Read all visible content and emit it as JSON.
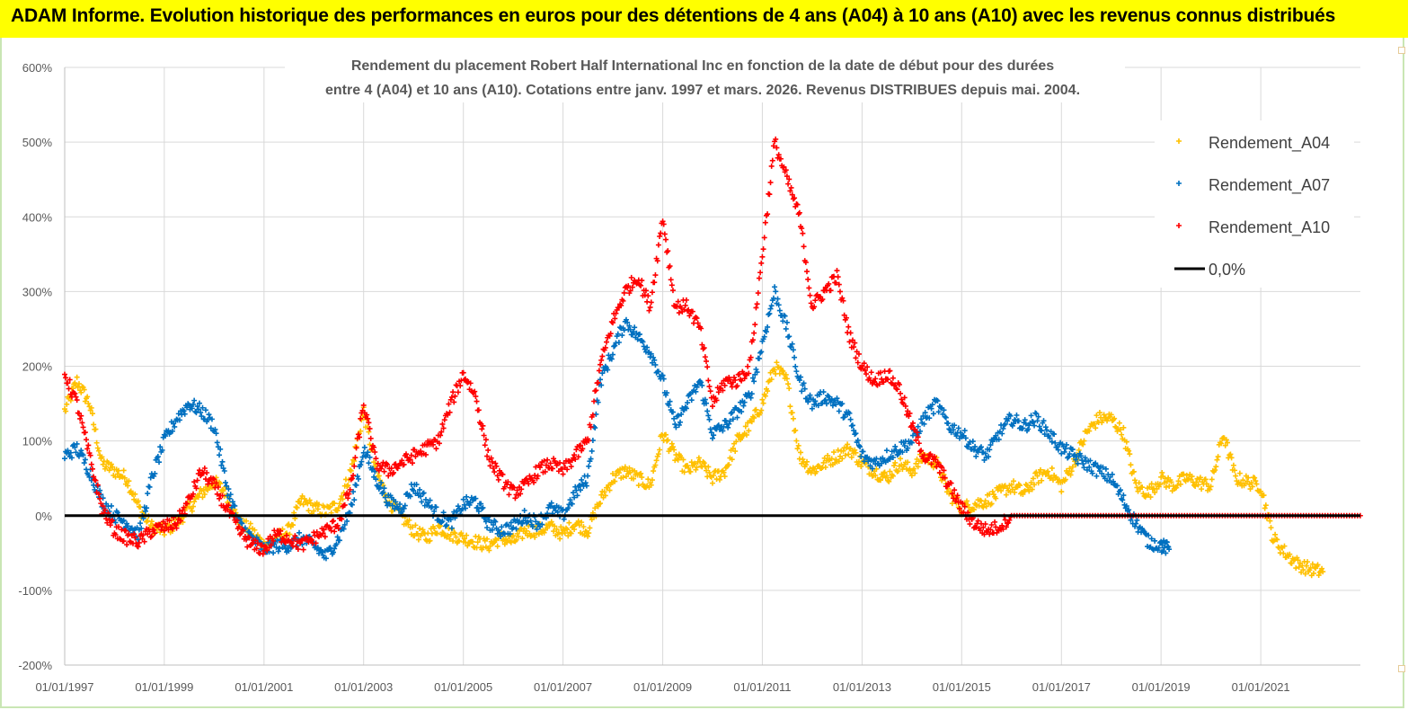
{
  "header": {
    "title": "ADAM Informe. Evolution historique des performances en euros pour des détentions de 4 ans (A04) à 10 ans (A10) avec les revenus connus distribués"
  },
  "chart_data": {
    "type": "scatter",
    "title_line1": "Rendement du placement Robert Half International Inc en fonction de la date de début pour des durées",
    "title_line2": "entre 4 (A04) et 10 ans (A10).  Cotations entre janv. 1997 et mars. 2026. Revenus DISTRIBUES depuis mai. 2004.",
    "xlabel": "",
    "ylabel": "",
    "ylim": [
      -200,
      600
    ],
    "yticks": [
      "600%",
      "500%",
      "400%",
      "300%",
      "200%",
      "100%",
      "0%",
      "-100%",
      "-200%"
    ],
    "xticks": [
      "01/01/1997",
      "01/01/1999",
      "01/01/2001",
      "01/01/2003",
      "01/01/2005",
      "01/01/2007",
      "01/01/2009",
      "01/01/2011",
      "01/01/2013",
      "01/01/2015",
      "01/01/2017",
      "01/01/2019",
      "01/01/2021"
    ],
    "grid": true,
    "legend_position": "top-right",
    "legend": [
      "Rendement_A04",
      "Rendement_A07",
      "Rendement_A10",
      "0,0%"
    ],
    "series": [
      {
        "name": "Rendement_A04",
        "color": "#ffc000",
        "marker": "plus",
        "points": [
          [
            "1997-01-01",
            140
          ],
          [
            "1997-04-01",
            180
          ],
          [
            "1997-07-01",
            150
          ],
          [
            "1997-10-01",
            70
          ],
          [
            "1998-01-01",
            60
          ],
          [
            "1998-04-01",
            50
          ],
          [
            "1998-07-01",
            10
          ],
          [
            "1998-10-01",
            -15
          ],
          [
            "1999-01-01",
            -20
          ],
          [
            "1999-04-01",
            -10
          ],
          [
            "1999-07-01",
            10
          ],
          [
            "1999-10-01",
            30
          ],
          [
            "2000-01-01",
            45
          ],
          [
            "2000-04-01",
            30
          ],
          [
            "2000-07-01",
            -10
          ],
          [
            "2000-10-01",
            -20
          ],
          [
            "2001-01-01",
            -40
          ],
          [
            "2001-04-01",
            -30
          ],
          [
            "2001-07-01",
            -20
          ],
          [
            "2001-10-01",
            20
          ],
          [
            "2002-01-01",
            10
          ],
          [
            "2002-04-01",
            5
          ],
          [
            "2002-07-01",
            15
          ],
          [
            "2002-10-01",
            60
          ],
          [
            "2003-01-01",
            140
          ],
          [
            "2003-04-01",
            60
          ],
          [
            "2003-07-01",
            20
          ],
          [
            "2003-10-01",
            0
          ],
          [
            "2004-01-01",
            -20
          ],
          [
            "2004-04-01",
            -30
          ],
          [
            "2004-07-01",
            -15
          ],
          [
            "2004-10-01",
            -25
          ],
          [
            "2005-01-01",
            -30
          ],
          [
            "2005-04-01",
            -35
          ],
          [
            "2005-07-01",
            -40
          ],
          [
            "2005-10-01",
            -30
          ],
          [
            "2006-01-01",
            -35
          ],
          [
            "2006-04-01",
            -20
          ],
          [
            "2006-07-01",
            -20
          ],
          [
            "2006-10-01",
            -15
          ],
          [
            "2007-01-01",
            -25
          ],
          [
            "2007-04-01",
            -10
          ],
          [
            "2007-07-01",
            -20
          ],
          [
            "2007-10-01",
            20
          ],
          [
            "2008-01-01",
            50
          ],
          [
            "2008-04-01",
            60
          ],
          [
            "2008-07-01",
            50
          ],
          [
            "2008-10-01",
            40
          ],
          [
            "2009-01-01",
            110
          ],
          [
            "2009-04-01",
            80
          ],
          [
            "2009-07-01",
            60
          ],
          [
            "2009-10-01",
            70
          ],
          [
            "2010-01-01",
            50
          ],
          [
            "2010-04-01",
            60
          ],
          [
            "2010-07-01",
            100
          ],
          [
            "2010-10-01",
            120
          ],
          [
            "2011-01-01",
            150
          ],
          [
            "2011-04-01",
            200
          ],
          [
            "2011-07-01",
            180
          ],
          [
            "2011-10-01",
            80
          ],
          [
            "2012-01-01",
            60
          ],
          [
            "2012-04-01",
            70
          ],
          [
            "2012-07-01",
            80
          ],
          [
            "2012-10-01",
            90
          ],
          [
            "2013-01-01",
            70
          ],
          [
            "2013-04-01",
            60
          ],
          [
            "2013-07-01",
            50
          ],
          [
            "2013-10-01",
            70
          ],
          [
            "2014-01-01",
            60
          ],
          [
            "2014-04-01",
            80
          ],
          [
            "2014-07-01",
            70
          ],
          [
            "2014-10-01",
            30
          ],
          [
            "2015-01-01",
            10
          ],
          [
            "2015-04-01",
            15
          ],
          [
            "2015-07-01",
            20
          ],
          [
            "2015-10-01",
            30
          ],
          [
            "2016-01-01",
            40
          ],
          [
            "2016-04-01",
            30
          ],
          [
            "2016-07-01",
            50
          ],
          [
            "2016-10-01",
            60
          ],
          [
            "2017-01-01",
            40
          ],
          [
            "2017-04-01",
            70
          ],
          [
            "2017-07-01",
            110
          ],
          [
            "2017-10-01",
            130
          ],
          [
            "2018-01-01",
            130
          ],
          [
            "2018-04-01",
            110
          ],
          [
            "2018-07-01",
            40
          ],
          [
            "2018-10-01",
            30
          ],
          [
            "2019-01-01",
            50
          ],
          [
            "2019-04-01",
            40
          ],
          [
            "2019-07-01",
            50
          ],
          [
            "2019-10-01",
            45
          ],
          [
            "2020-01-01",
            40
          ],
          [
            "2020-04-01",
            110
          ],
          [
            "2020-07-01",
            50
          ],
          [
            "2020-10-01",
            45
          ],
          [
            "2021-01-01",
            40
          ],
          [
            "2021-04-01",
            -30
          ],
          [
            "2021-07-01",
            -50
          ],
          [
            "2021-10-01",
            -65
          ],
          [
            "2022-01-01",
            -72
          ],
          [
            "2022-04-01",
            -75
          ]
        ]
      },
      {
        "name": "Rendement_A07",
        "color": "#0070c0",
        "marker": "plus",
        "points": [
          [
            "1997-01-01",
            80
          ],
          [
            "1997-04-01",
            90
          ],
          [
            "1997-07-01",
            60
          ],
          [
            "1997-10-01",
            20
          ],
          [
            "1998-01-01",
            0
          ],
          [
            "1998-04-01",
            -10
          ],
          [
            "1998-07-01",
            -25
          ],
          [
            "1998-10-01",
            50
          ],
          [
            "1999-01-01",
            100
          ],
          [
            "1999-04-01",
            130
          ],
          [
            "1999-07-01",
            150
          ],
          [
            "1999-10-01",
            140
          ],
          [
            "2000-01-01",
            120
          ],
          [
            "2000-04-01",
            40
          ],
          [
            "2000-07-01",
            -10
          ],
          [
            "2000-10-01",
            -30
          ],
          [
            "2001-01-01",
            -45
          ],
          [
            "2001-04-01",
            -40
          ],
          [
            "2001-07-01",
            -40
          ],
          [
            "2001-10-01",
            -30
          ],
          [
            "2002-01-01",
            -40
          ],
          [
            "2002-04-01",
            -55
          ],
          [
            "2002-07-01",
            -30
          ],
          [
            "2002-10-01",
            10
          ],
          [
            "2003-01-01",
            90
          ],
          [
            "2003-04-01",
            50
          ],
          [
            "2003-07-01",
            20
          ],
          [
            "2003-10-01",
            10
          ],
          [
            "2004-01-01",
            40
          ],
          [
            "2004-04-01",
            20
          ],
          [
            "2004-07-01",
            0
          ],
          [
            "2004-10-01",
            -10
          ],
          [
            "2005-01-01",
            15
          ],
          [
            "2005-04-01",
            20
          ],
          [
            "2005-07-01",
            -10
          ],
          [
            "2005-10-01",
            -20
          ],
          [
            "2006-01-01",
            -15
          ],
          [
            "2006-04-01",
            0
          ],
          [
            "2006-07-01",
            -10
          ],
          [
            "2006-10-01",
            10
          ],
          [
            "2007-01-01",
            0
          ],
          [
            "2007-04-01",
            30
          ],
          [
            "2007-07-01",
            50
          ],
          [
            "2007-10-01",
            180
          ],
          [
            "2008-01-01",
            220
          ],
          [
            "2008-04-01",
            260
          ],
          [
            "2008-07-01",
            240
          ],
          [
            "2008-10-01",
            220
          ],
          [
            "2009-01-01",
            180
          ],
          [
            "2009-04-01",
            120
          ],
          [
            "2009-07-01",
            150
          ],
          [
            "2009-10-01",
            180
          ],
          [
            "2010-01-01",
            110
          ],
          [
            "2010-04-01",
            120
          ],
          [
            "2010-07-01",
            140
          ],
          [
            "2010-10-01",
            160
          ],
          [
            "2011-01-01",
            230
          ],
          [
            "2011-04-01",
            300
          ],
          [
            "2011-07-01",
            250
          ],
          [
            "2011-10-01",
            180
          ],
          [
            "2012-01-01",
            150
          ],
          [
            "2012-04-01",
            160
          ],
          [
            "2012-07-01",
            150
          ],
          [
            "2012-10-01",
            130
          ],
          [
            "2013-01-01",
            80
          ],
          [
            "2013-04-01",
            70
          ],
          [
            "2013-07-01",
            80
          ],
          [
            "2013-10-01",
            90
          ],
          [
            "2014-01-01",
            100
          ],
          [
            "2014-04-01",
            130
          ],
          [
            "2014-07-01",
            150
          ],
          [
            "2014-10-01",
            120
          ],
          [
            "2015-01-01",
            110
          ],
          [
            "2015-04-01",
            90
          ],
          [
            "2015-07-01",
            80
          ],
          [
            "2015-10-01",
            110
          ],
          [
            "2016-01-01",
            130
          ],
          [
            "2016-04-01",
            120
          ],
          [
            "2016-07-01",
            130
          ],
          [
            "2016-10-01",
            110
          ],
          [
            "2017-01-01",
            90
          ],
          [
            "2017-04-01",
            80
          ],
          [
            "2017-07-01",
            70
          ],
          [
            "2017-10-01",
            60
          ],
          [
            "2018-01-01",
            50
          ],
          [
            "2018-04-01",
            20
          ],
          [
            "2018-07-01",
            -10
          ],
          [
            "2018-10-01",
            -35
          ],
          [
            "2019-01-01",
            -40
          ],
          [
            "2019-03-01",
            -45
          ]
        ]
      },
      {
        "name": "Rendement_A10",
        "color": "#ff0000",
        "marker": "plus",
        "points": [
          [
            "1997-01-01",
            190
          ],
          [
            "1997-04-01",
            150
          ],
          [
            "1997-07-01",
            80
          ],
          [
            "1997-10-01",
            10
          ],
          [
            "1998-01-01",
            -20
          ],
          [
            "1998-04-01",
            -30
          ],
          [
            "1998-07-01",
            -35
          ],
          [
            "1998-10-01",
            -20
          ],
          [
            "1999-01-01",
            -15
          ],
          [
            "1999-04-01",
            -10
          ],
          [
            "1999-07-01",
            20
          ],
          [
            "1999-10-01",
            60
          ],
          [
            "2000-01-01",
            40
          ],
          [
            "2000-04-01",
            10
          ],
          [
            "2000-07-01",
            -20
          ],
          [
            "2000-10-01",
            -40
          ],
          [
            "2001-01-01",
            -45
          ],
          [
            "2001-04-01",
            -25
          ],
          [
            "2001-07-01",
            -30
          ],
          [
            "2001-10-01",
            -40
          ],
          [
            "2002-01-01",
            -30
          ],
          [
            "2002-04-01",
            -20
          ],
          [
            "2002-07-01",
            -10
          ],
          [
            "2002-10-01",
            40
          ],
          [
            "2003-01-01",
            150
          ],
          [
            "2003-04-01",
            70
          ],
          [
            "2003-07-01",
            60
          ],
          [
            "2003-10-01",
            70
          ],
          [
            "2004-01-01",
            80
          ],
          [
            "2004-04-01",
            90
          ],
          [
            "2004-07-01",
            100
          ],
          [
            "2004-10-01",
            150
          ],
          [
            "2005-01-01",
            190
          ],
          [
            "2005-04-01",
            160
          ],
          [
            "2005-07-01",
            80
          ],
          [
            "2005-10-01",
            50
          ],
          [
            "2006-01-01",
            30
          ],
          [
            "2006-04-01",
            40
          ],
          [
            "2006-07-01",
            60
          ],
          [
            "2006-10-01",
            70
          ],
          [
            "2007-01-01",
            60
          ],
          [
            "2007-04-01",
            80
          ],
          [
            "2007-07-01",
            100
          ],
          [
            "2007-10-01",
            200
          ],
          [
            "2008-01-01",
            260
          ],
          [
            "2008-04-01",
            300
          ],
          [
            "2008-07-01",
            320
          ],
          [
            "2008-10-01",
            280
          ],
          [
            "2009-01-01",
            400
          ],
          [
            "2009-04-01",
            280
          ],
          [
            "2009-07-01",
            280
          ],
          [
            "2009-10-01",
            250
          ],
          [
            "2010-01-01",
            150
          ],
          [
            "2010-04-01",
            180
          ],
          [
            "2010-07-01",
            180
          ],
          [
            "2010-10-01",
            200
          ],
          [
            "2011-01-01",
            350
          ],
          [
            "2011-04-01",
            500
          ],
          [
            "2011-07-01",
            450
          ],
          [
            "2011-10-01",
            400
          ],
          [
            "2012-01-01",
            280
          ],
          [
            "2012-04-01",
            300
          ],
          [
            "2012-07-01",
            320
          ],
          [
            "2012-10-01",
            240
          ],
          [
            "2013-01-01",
            200
          ],
          [
            "2013-04-01",
            180
          ],
          [
            "2013-07-01",
            190
          ],
          [
            "2013-10-01",
            170
          ],
          [
            "2014-01-01",
            120
          ],
          [
            "2014-04-01",
            80
          ],
          [
            "2014-07-01",
            70
          ],
          [
            "2014-10-01",
            40
          ],
          [
            "2015-01-01",
            10
          ],
          [
            "2015-04-01",
            -10
          ],
          [
            "2015-07-01",
            -20
          ],
          [
            "2015-10-01",
            -15
          ],
          [
            "2016-01-01",
            0
          ],
          [
            "2022-12-31",
            0
          ]
        ]
      },
      {
        "name": "0,0%",
        "color": "#000000",
        "marker": "line",
        "points": [
          [
            "1997-01-01",
            0
          ],
          [
            "2023-01-01",
            0
          ]
        ]
      }
    ]
  }
}
